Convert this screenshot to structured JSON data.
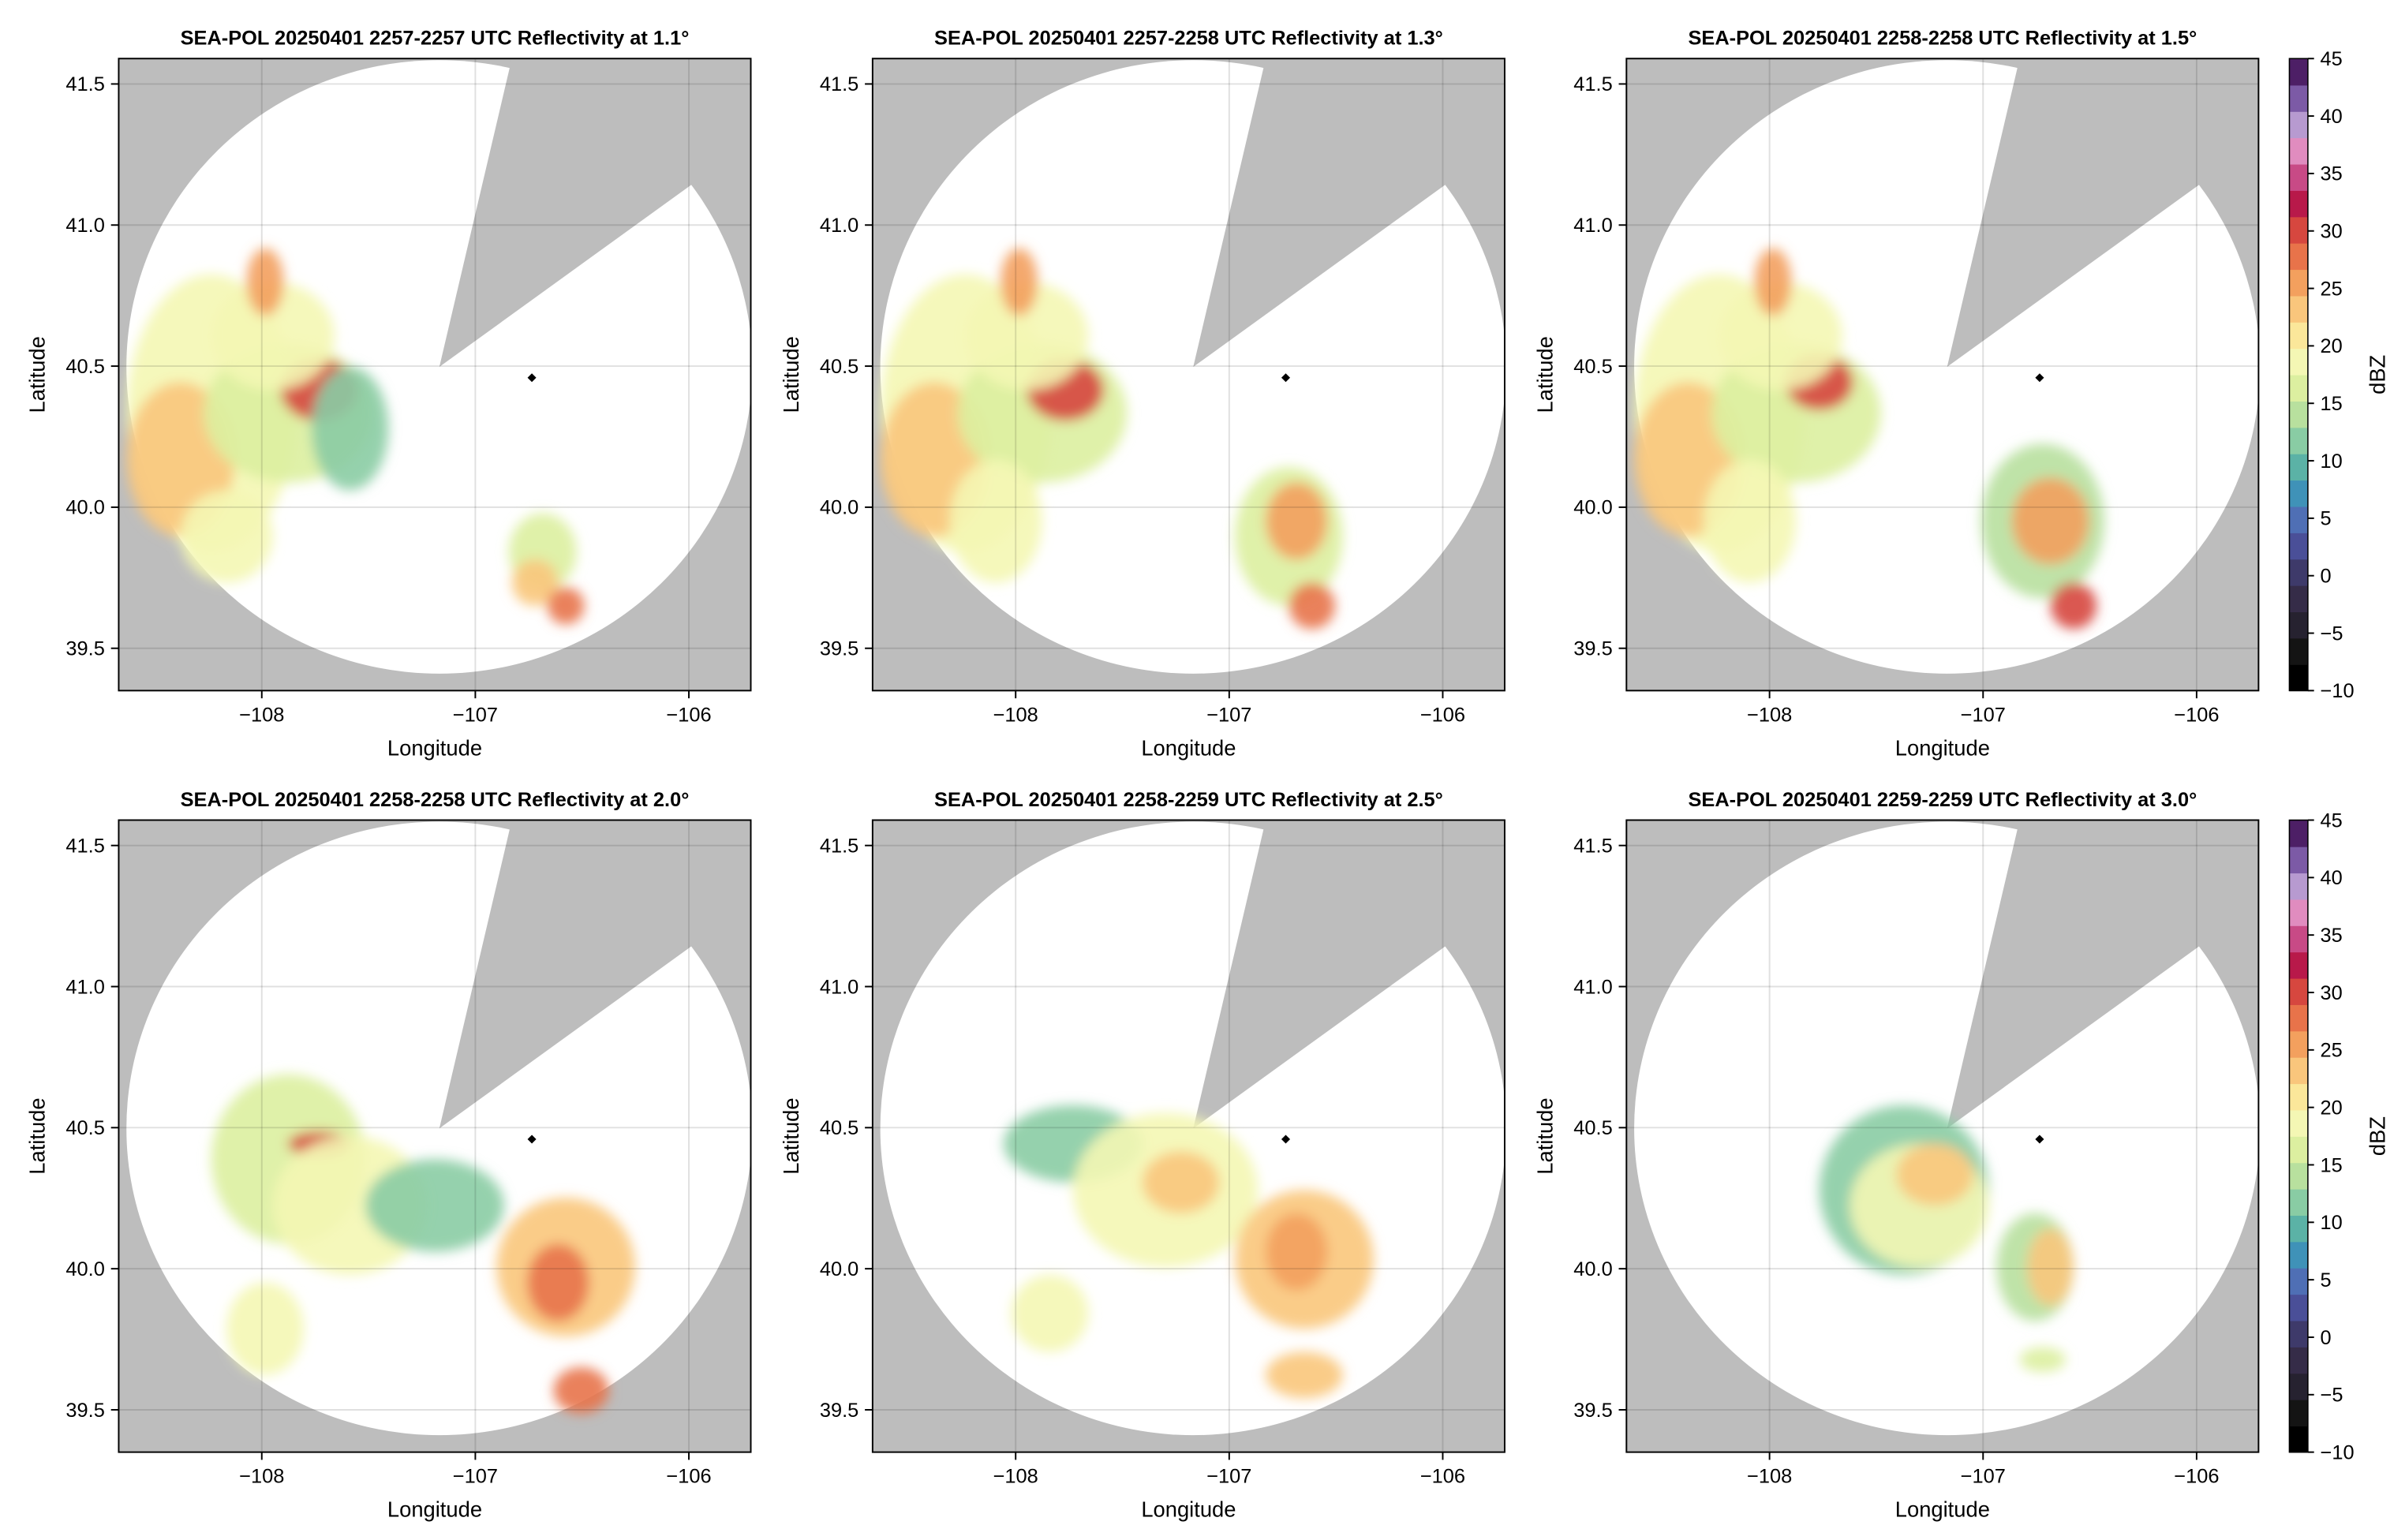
{
  "chart_data": [
    {
      "type": "radar",
      "title": "SEA-POL 20250401 2257-2257 UTC Reflectivity at 1.1°",
      "xlabel": "Longitude",
      "ylabel": "Latitude",
      "xlim": [
        -108.67,
        -105.71
      ],
      "ylim": [
        39.35,
        41.59
      ],
      "xticks": [
        {
          "value": -108,
          "label": "−108"
        },
        {
          "value": -107,
          "label": "−107"
        },
        {
          "value": -106,
          "label": "−106"
        }
      ],
      "yticks": [
        39.5,
        {
          "value": 40,
          "label": "40.0"
        },
        40.5,
        {
          "value": 41,
          "label": "41.0"
        },
        41.5
      ],
      "grid": true
    },
    {
      "type": "radar",
      "title": "SEA-POL 20250401 2257-2258 UTC Reflectivity at 1.3°",
      "xlabel": "Longitude",
      "ylabel": "Latitude",
      "xlim": [
        -108.67,
        -105.71
      ],
      "ylim": [
        39.35,
        41.59
      ],
      "xticks": [
        {
          "value": -108,
          "label": "−108"
        },
        {
          "value": -107,
          "label": "−107"
        },
        {
          "value": -106,
          "label": "−106"
        }
      ],
      "yticks": [
        39.5,
        {
          "value": 40,
          "label": "40.0"
        },
        40.5,
        {
          "value": 41,
          "label": "41.0"
        },
        41.5
      ],
      "grid": true
    },
    {
      "type": "radar",
      "title": "SEA-POL 20250401 2258-2258 UTC Reflectivity at 1.5°",
      "xlabel": "Longitude",
      "ylabel": "Latitude",
      "xlim": [
        -108.67,
        -105.71
      ],
      "ylim": [
        39.35,
        41.59
      ],
      "xticks": [
        {
          "value": -108,
          "label": "−108"
        },
        {
          "value": -107,
          "label": "−107"
        },
        {
          "value": -106,
          "label": "−106"
        }
      ],
      "yticks": [
        39.5,
        {
          "value": 40,
          "label": "40.0"
        },
        40.5,
        {
          "value": 41,
          "label": "41.0"
        },
        41.5
      ],
      "grid": true,
      "colorbar": {
        "label": "dBZ",
        "lim": [
          -10,
          45
        ],
        "ticks": [
          {
            "value": -10,
            "label": "−10"
          },
          {
            "value": -5,
            "label": "−5"
          },
          0,
          5,
          10,
          15,
          20,
          25,
          30,
          35,
          40,
          45
        ],
        "colors": [
          "#000000",
          "#141414",
          "#262230",
          "#352c48",
          "#3e3a6a",
          "#4a4f98",
          "#4f6fb5",
          "#3f92b8",
          "#5bb2a6",
          "#89cca4",
          "#b8e09e",
          "#dcefa0",
          "#f4f7b4",
          "#fbe79a",
          "#f9c67c",
          "#f3a05e",
          "#e8734a",
          "#d6473f",
          "#b8194a",
          "#c84a86",
          "#e08cbf",
          "#b79ad0",
          "#7c5aa6",
          "#4d1f66"
        ]
      }
    },
    {
      "type": "radar",
      "title": "SEA-POL 20250401 2258-2258 UTC Reflectivity at 2.0°",
      "xlabel": "Longitude",
      "ylabel": "Latitude",
      "xlim": [
        -108.67,
        -105.71
      ],
      "ylim": [
        39.35,
        41.59
      ],
      "xticks": [
        {
          "value": -108,
          "label": "−108"
        },
        {
          "value": -107,
          "label": "−107"
        },
        {
          "value": -106,
          "label": "−106"
        }
      ],
      "yticks": [
        39.5,
        {
          "value": 40,
          "label": "40.0"
        },
        40.5,
        {
          "value": 41,
          "label": "41.0"
        },
        41.5
      ],
      "grid": true
    },
    {
      "type": "radar",
      "title": "SEA-POL 20250401 2258-2259 UTC Reflectivity at 2.5°",
      "xlabel": "Longitude",
      "ylabel": "Latitude",
      "xlim": [
        -108.67,
        -105.71
      ],
      "ylim": [
        39.35,
        41.59
      ],
      "xticks": [
        {
          "value": -108,
          "label": "−108"
        },
        {
          "value": -107,
          "label": "−107"
        },
        {
          "value": -106,
          "label": "−106"
        }
      ],
      "yticks": [
        39.5,
        {
          "value": 40,
          "label": "40.0"
        },
        40.5,
        {
          "value": 41,
          "label": "41.0"
        },
        41.5
      ],
      "grid": true
    },
    {
      "type": "radar",
      "title": "SEA-POL 20250401 2259-2259 UTC Reflectivity at 3.0°",
      "xlabel": "Longitude",
      "ylabel": "Latitude",
      "xlim": [
        -108.67,
        -105.71
      ],
      "ylim": [
        39.35,
        41.59
      ],
      "xticks": [
        {
          "value": -108,
          "label": "−108"
        },
        {
          "value": -107,
          "label": "−107"
        },
        {
          "value": -106,
          "label": "−106"
        }
      ],
      "yticks": [
        39.5,
        {
          "value": 40,
          "label": "40.0"
        },
        40.5,
        {
          "value": 41,
          "label": "41.0"
        },
        41.5
      ],
      "grid": true,
      "colorbar": {
        "label": "dBZ",
        "lim": [
          -10,
          45
        ],
        "ticks": [
          {
            "value": -10,
            "label": "−10"
          },
          {
            "value": -5,
            "label": "−5"
          },
          0,
          5,
          10,
          15,
          20,
          25,
          30,
          35,
          40,
          45
        ],
        "colors": [
          "#000000",
          "#141414",
          "#262230",
          "#352c48",
          "#3e3a6a",
          "#4a4f98",
          "#4f6fb5",
          "#3f92b8",
          "#5bb2a6",
          "#89cca4",
          "#b8e09e",
          "#dcefa0",
          "#f4f7b4",
          "#fbe79a",
          "#f9c67c",
          "#f3a05e",
          "#e8734a",
          "#d6473f",
          "#b8194a",
          "#c84a86",
          "#e08cbf",
          "#b79ad0",
          "#7c5aa6",
          "#4d1f66"
        ]
      }
    }
  ]
}
